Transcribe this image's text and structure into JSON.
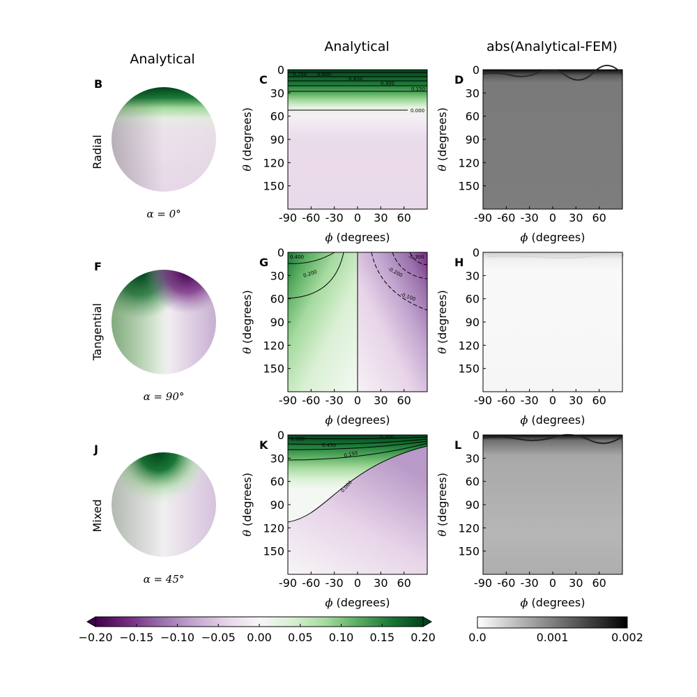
{
  "headers": {
    "col1": "Analytical",
    "col2": "Analytical",
    "col3": "abs(Analytical-FEM)"
  },
  "axis_labels": {
    "x": "(degrees)",
    "x_symbol": "ϕ",
    "y": "(degrees)",
    "y_symbol": "θ"
  },
  "rows": [
    {
      "row_label": "Radial",
      "sphere_panel": "B",
      "alpha_label": "α = 0°",
      "analytical_panel": "C",
      "error_panel": "D"
    },
    {
      "row_label": "Tangential",
      "sphere_panel": "F",
      "alpha_label": "α = 90°",
      "analytical_panel": "G",
      "error_panel": "H"
    },
    {
      "row_label": "Mixed",
      "sphere_panel": "J",
      "alpha_label": "α = 45°",
      "analytical_panel": "K",
      "error_panel": "L"
    }
  ],
  "colors": {
    "diverging": [
      "#40004b",
      "#762a83",
      "#9970ab",
      "#c2a5cf",
      "#e7d4e8",
      "#f7f7f7",
      "#d9f0d3",
      "#a6dba0",
      "#5aae61",
      "#1b7837",
      "#00441b"
    ],
    "error_gray": [
      "#ffffff",
      "#000000"
    ]
  },
  "chart_data": [
    {
      "type": "heatmap",
      "panel": "C",
      "xlabel": "ϕ (degrees)",
      "ylabel": "θ (degrees)",
      "x_ticks": [
        "-90",
        "-60",
        "-30",
        "0",
        "30",
        "60"
      ],
      "y_ticks": [
        "0",
        "30",
        "60",
        "90",
        "120",
        "150"
      ],
      "xlim": [
        -90,
        90
      ],
      "ylim": [
        180,
        0
      ],
      "contour_labels": [
        "0.000",
        "0.150",
        "0.300",
        "0.450",
        "0.600",
        "0.750"
      ]
    },
    {
      "type": "heatmap",
      "panel": "G",
      "xlabel": "ϕ (degrees)",
      "ylabel": "θ (degrees)",
      "x_ticks": [
        "-90",
        "-60",
        "-30",
        "0",
        "30",
        "60"
      ],
      "y_ticks": [
        "0",
        "30",
        "60",
        "90",
        "120",
        "150"
      ],
      "xlim": [
        -90,
        90
      ],
      "ylim": [
        180,
        0
      ],
      "contour_labels": [
        "0.200",
        "0.400",
        "-0.100",
        "-0.200",
        "-0.300"
      ]
    },
    {
      "type": "heatmap",
      "panel": "K",
      "xlabel": "ϕ (degrees)",
      "ylabel": "θ (degrees)",
      "x_ticks": [
        "-90",
        "-60",
        "-30",
        "0",
        "30",
        "60"
      ],
      "y_ticks": [
        "0",
        "30",
        "60",
        "90",
        "120",
        "150"
      ],
      "xlim": [
        -90,
        90
      ],
      "ylim": [
        180,
        0
      ],
      "contour_labels": [
        "0.000",
        "0.150",
        "0.300",
        "0.450",
        "0.600"
      ]
    },
    {
      "type": "heatmap",
      "panel": "D",
      "xlabel": "ϕ (degrees)",
      "ylabel": "θ (degrees)",
      "x_ticks": [
        "-90",
        "-60",
        "-30",
        "0",
        "30",
        "60"
      ],
      "y_ticks": [
        "0",
        "30",
        "60",
        "90",
        "120",
        "150"
      ],
      "xlim": [
        -90,
        90
      ],
      "ylim": [
        180,
        0
      ],
      "typical_value": 0.00118
    },
    {
      "type": "heatmap",
      "panel": "H",
      "xlabel": "ϕ (degrees)",
      "ylabel": "θ (degrees)",
      "x_ticks": [
        "-90",
        "-60",
        "-30",
        "0",
        "30",
        "60"
      ],
      "y_ticks": [
        "0",
        "30",
        "60",
        "90",
        "120",
        "150"
      ],
      "xlim": [
        -90,
        90
      ],
      "ylim": [
        180,
        0
      ],
      "typical_value": 5e-05
    },
    {
      "type": "heatmap",
      "panel": "L",
      "xlabel": "ϕ (degrees)",
      "ylabel": "θ (degrees)",
      "x_ticks": [
        "-90",
        "-60",
        "-30",
        "0",
        "30",
        "60"
      ],
      "y_ticks": [
        "0",
        "30",
        "60",
        "90",
        "120",
        "150"
      ],
      "xlim": [
        -90,
        90
      ],
      "ylim": [
        180,
        0
      ],
      "typical_value": 0.0007
    }
  ],
  "colorbars": [
    {
      "name": "analytical",
      "range": [
        -0.2,
        0.2
      ],
      "extend": "both",
      "ticks": [
        "−0.20",
        "−0.15",
        "−0.10",
        "−0.05",
        "0.00",
        "0.05",
        "0.10",
        "0.15",
        "0.20"
      ]
    },
    {
      "name": "error",
      "range": [
        0,
        0.002
      ],
      "ticks": [
        "0.0",
        "0.001",
        "0.002"
      ]
    }
  ]
}
